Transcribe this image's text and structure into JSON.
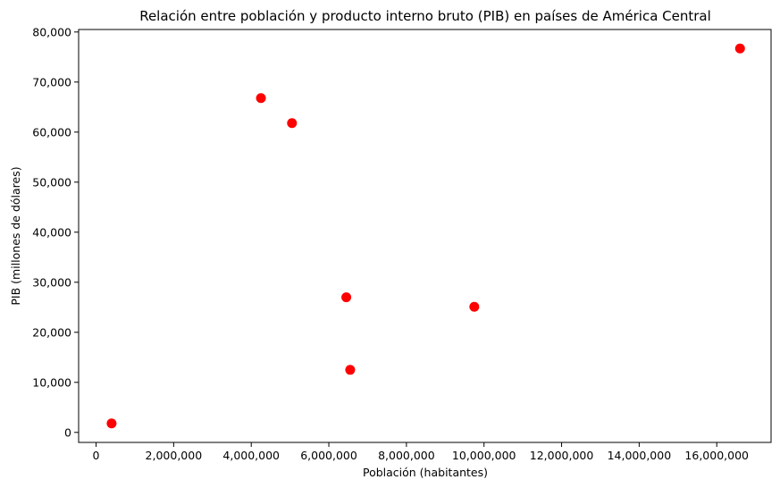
{
  "chart_data": {
    "type": "scatter",
    "title": "Relación entre población y producto interno bruto (PIB) en países de América Central",
    "xlabel": "Población (habitantes)",
    "ylabel": "PIB (millones de dólares)",
    "xlim": [
      -450000,
      17400000
    ],
    "ylim": [
      -2000,
      80500
    ],
    "xticks": [
      0,
      2000000,
      4000000,
      6000000,
      8000000,
      10000000,
      12000000,
      14000000,
      16000000
    ],
    "xtick_labels": [
      "0",
      "2,000,000",
      "4,000,000",
      "6,000,000",
      "8,000,000",
      "10,000,000",
      "12,000,000",
      "14,000,000",
      "16,000,000"
    ],
    "yticks": [
      0,
      10000,
      20000,
      30000,
      40000,
      50000,
      60000,
      70000,
      80000
    ],
    "ytick_labels": [
      "0",
      "10,000",
      "20,000",
      "30,000",
      "40,000",
      "50,000",
      "60,000",
      "70,000",
      "80,000"
    ],
    "grid": false,
    "marker_color": "#ff0000",
    "points": [
      {
        "x": 400000,
        "y": 1800
      },
      {
        "x": 4250000,
        "y": 66800
      },
      {
        "x": 5050000,
        "y": 61800
      },
      {
        "x": 6450000,
        "y": 27000
      },
      {
        "x": 6550000,
        "y": 12500
      },
      {
        "x": 9750000,
        "y": 25100
      },
      {
        "x": 16600000,
        "y": 76700
      }
    ]
  }
}
